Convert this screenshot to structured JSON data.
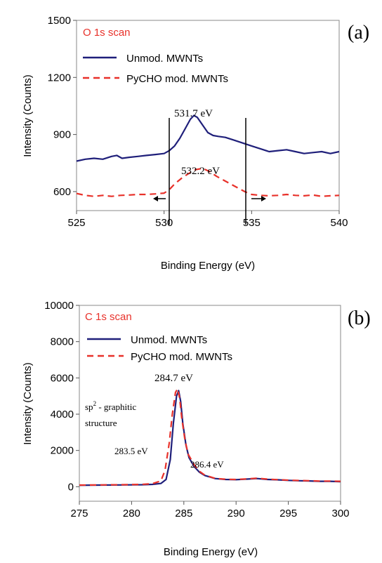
{
  "chart_data": [
    {
      "type": "line",
      "panel_label": "(a)",
      "title": "O 1s scan",
      "xlabel": "Binding Energy (eV)",
      "ylabel": "Intensity (Counts)",
      "xlim": [
        525,
        540
      ],
      "ylim": [
        500,
        1500
      ],
      "xticks": [
        "525",
        "530",
        "535",
        "540"
      ],
      "yticks": [
        "600",
        "900",
        "1200",
        "1500"
      ],
      "legend_position": "top-left",
      "series": [
        {
          "name": "Unmod. MWNTs",
          "color": "#1f1f7a",
          "style": "solid",
          "x": [
            525,
            525.5,
            526,
            526.5,
            527,
            527.3,
            527.6,
            528,
            528.5,
            529,
            529.5,
            530,
            530.3,
            530.6,
            530.9,
            531.2,
            531.5,
            531.7,
            531.9,
            532.2,
            532.5,
            532.8,
            533.1,
            533.5,
            534,
            534.5,
            535,
            535.5,
            536,
            536.5,
            537,
            537.5,
            538,
            538.5,
            539,
            539.5,
            540
          ],
          "y": [
            760,
            770,
            775,
            770,
            785,
            790,
            775,
            780,
            785,
            790,
            795,
            800,
            815,
            840,
            880,
            930,
            980,
            1000,
            990,
            950,
            910,
            895,
            890,
            885,
            870,
            855,
            840,
            825,
            810,
            815,
            820,
            810,
            800,
            805,
            810,
            800,
            810
          ]
        },
        {
          "name": "PyCHO mod. MWNTs",
          "color": "#e8312a",
          "style": "dashed",
          "x": [
            525,
            525.5,
            526,
            526.5,
            527,
            527.5,
            528,
            528.5,
            529,
            529.5,
            530,
            530.3,
            530.6,
            531,
            531.4,
            531.8,
            532.2,
            532.6,
            533,
            533.4,
            533.8,
            534.2,
            534.6,
            535,
            535.5,
            536,
            536.5,
            537,
            537.5,
            538,
            538.5,
            539,
            539.5,
            540
          ],
          "y": [
            590,
            580,
            575,
            580,
            575,
            580,
            582,
            585,
            585,
            588,
            592,
            610,
            640,
            670,
            695,
            715,
            722,
            705,
            680,
            660,
            640,
            620,
            600,
            585,
            580,
            578,
            580,
            585,
            580,
            578,
            582,
            575,
            578,
            580
          ]
        }
      ],
      "annotations": [
        "531.7 eV",
        "532.2 eV"
      ]
    },
    {
      "type": "line",
      "panel_label": "(b)",
      "title": "C 1s scan",
      "xlabel": "Binding Energy (eV)",
      "ylabel": "Intensity (Counts)",
      "xlim": [
        275,
        300
      ],
      "ylim": [
        -800,
        10000
      ],
      "xticks": [
        "275",
        "280",
        "285",
        "290",
        "295",
        "300"
      ],
      "yticks": [
        "0",
        "2000",
        "4000",
        "6000",
        "8000",
        "10000"
      ],
      "legend_position": "top-left",
      "series": [
        {
          "name": "Unmod. MWNTs",
          "color": "#1f1f7a",
          "style": "solid",
          "x": [
            275,
            277,
            279,
            281,
            282,
            282.8,
            283.3,
            283.7,
            284,
            284.3,
            284.5,
            284.7,
            284.9,
            285.2,
            285.5,
            286,
            286.5,
            287,
            288,
            289,
            290,
            291,
            292,
            293,
            294,
            295,
            296,
            297,
            298,
            299,
            300
          ],
          "y": [
            80,
            90,
            100,
            110,
            130,
            180,
            400,
            1500,
            3500,
            5000,
            5300,
            4700,
            3500,
            2300,
            1600,
            1100,
            800,
            620,
            450,
            400,
            390,
            420,
            450,
            400,
            380,
            350,
            330,
            320,
            300,
            300,
            280
          ]
        },
        {
          "name": "PyCHO mod. MWNTs",
          "color": "#e8312a",
          "style": "dashed",
          "x": [
            275,
            277,
            279,
            281,
            282,
            282.8,
            283.2,
            283.6,
            283.9,
            284.2,
            284.4,
            284.6,
            284.8,
            285.1,
            285.4,
            286,
            286.5,
            287,
            288,
            289,
            290,
            291,
            292,
            293,
            294,
            295,
            296,
            297,
            298,
            299,
            300
          ],
          "y": [
            90,
            100,
            110,
            130,
            170,
            320,
            900,
            2400,
            4000,
            5200,
            5400,
            4900,
            3800,
            2600,
            1800,
            1200,
            850,
            640,
            460,
            410,
            400,
            430,
            470,
            420,
            390,
            360,
            340,
            330,
            310,
            310,
            300
          ]
        }
      ],
      "annotations": [
        "284.7 eV",
        "sp² - graphitic",
        "structure",
        "283.5 eV",
        "286.4 eV"
      ]
    }
  ],
  "labels": {
    "a_panel": "(a)",
    "a_title": "O 1s scan",
    "a_leg1": "Unmod. MWNTs",
    "a_leg2": "PyCHO mod. MWNTs",
    "a_ann1": "531.7 eV",
    "a_ann2": "532.2 eV",
    "b_panel": "(b)",
    "b_title": "C 1s scan",
    "b_leg1": "Unmod. MWNTs",
    "b_leg2": "PyCHO mod. MWNTs",
    "b_ann_peak": "284.7 eV",
    "b_ann_sp": "sp",
    "b_ann_sup": "2",
    "b_ann_sp_rest": " - graphitic",
    "b_ann_structure": "structure",
    "b_ann_left": "283.5 eV",
    "b_ann_right": "286.4 eV",
    "xlabel": "Binding Energy (eV)",
    "ylabel": "Intensity (Counts)"
  }
}
